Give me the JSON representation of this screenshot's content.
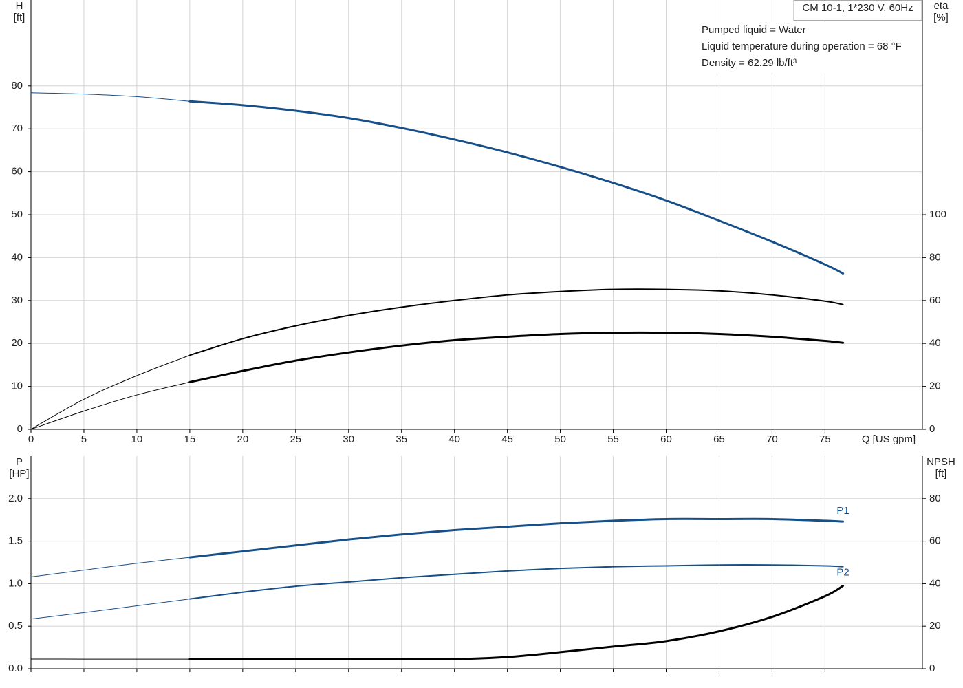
{
  "chart_data": [
    {
      "type": "line",
      "annotation_box": "CM 10-1, 1*230 V, 60Hz",
      "annotations": [
        "Pumped liquid = Water",
        "Liquid temperature during operation = 68 °F",
        "Density = 62.29 lb/ft³"
      ],
      "ylabel": "H",
      "yunit": "[ft]",
      "y2label": "eta",
      "y2unit": "[%]",
      "xlabel": "Q [US gpm]",
      "x": [
        0,
        5,
        10,
        15,
        20,
        25,
        30,
        35,
        40,
        45,
        50,
        55,
        60,
        65,
        70,
        75,
        76.7
      ],
      "xlim": [
        0,
        84.2
      ],
      "xticks": [
        0,
        5,
        10,
        15,
        20,
        25,
        30,
        35,
        40,
        45,
        50,
        55,
        60,
        65,
        70,
        75
      ],
      "ylim": [
        0,
        100
      ],
      "yticks": [
        0,
        10,
        20,
        30,
        40,
        50,
        60,
        70,
        80
      ],
      "y2lim": [
        0,
        200
      ],
      "y2ticks": [
        0,
        20,
        40,
        60,
        80,
        100
      ],
      "grid": true,
      "thick_from": 15,
      "series": [
        {
          "color": "#174f88",
          "linewidth": 3,
          "values": [
            78.4,
            78.1,
            77.5,
            76.4,
            75.5,
            74.2,
            72.5,
            70.2,
            67.5,
            64.5,
            61.1,
            57.4,
            53.3,
            48.6,
            43.7,
            38.4,
            36.3
          ]
        },
        {
          "color": "#000000",
          "axis": "y2",
          "linewidth": 2,
          "values": [
            0,
            14,
            25,
            34.5,
            42.2,
            48.2,
            53,
            56.9,
            60,
            62.6,
            64.2,
            65.2,
            65.2,
            64.5,
            62.6,
            59.7,
            58.1
          ]
        },
        {
          "color": "#000000",
          "axis": "y2",
          "linewidth": 3,
          "values": [
            0,
            8.5,
            16,
            22,
            27.2,
            32,
            35.8,
            39,
            41.5,
            43.1,
            44.4,
            45,
            45,
            44.4,
            43.1,
            41.2,
            40.3
          ]
        }
      ]
    },
    {
      "type": "line",
      "ylabel": "P",
      "yunit": "[HP]",
      "y2label": "NPSH",
      "y2unit": "[ft]",
      "x": [
        0,
        5,
        10,
        15,
        20,
        25,
        30,
        35,
        40,
        45,
        50,
        55,
        60,
        65,
        70,
        75,
        76.7
      ],
      "xlim": [
        0,
        84.2
      ],
      "xticks": [
        0,
        5,
        10,
        15,
        20,
        25,
        30,
        35,
        40,
        45,
        50,
        55,
        60,
        65,
        70,
        75
      ],
      "xtick_labels": false,
      "ylim": [
        0,
        2.5
      ],
      "yticks": [
        {
          "value": 0,
          "label": "0.0"
        },
        {
          "value": 0.5,
          "label": "0.5"
        },
        {
          "value": 1,
          "label": "1.0"
        },
        {
          "value": 1.5,
          "label": "1.5"
        },
        {
          "value": 2,
          "label": "2.0"
        }
      ],
      "y2lim": [
        0,
        100
      ],
      "y2ticks": [
        0,
        20,
        40,
        60,
        80
      ],
      "grid": true,
      "thick_from": 15,
      "series": [
        {
          "name": "P1",
          "color": "#174f88",
          "linewidth": 3,
          "values": [
            1.08,
            1.16,
            1.24,
            1.31,
            1.38,
            1.45,
            1.52,
            1.58,
            1.63,
            1.67,
            1.71,
            1.74,
            1.76,
            1.76,
            1.76,
            1.74,
            1.73
          ]
        },
        {
          "name": "P2",
          "color": "#174f88",
          "linewidth": 2,
          "values": [
            0.585,
            0.66,
            0.74,
            0.82,
            0.9,
            0.97,
            1.02,
            1.07,
            1.11,
            1.15,
            1.18,
            1.2,
            1.21,
            1.22,
            1.22,
            1.21,
            1.2
          ]
        },
        {
          "color": "#000000",
          "axis": "y2",
          "linewidth": 3,
          "values": [
            4.55,
            4.5,
            4.5,
            4.5,
            4.5,
            4.5,
            4.5,
            4.5,
            4.5,
            5.5,
            7.8,
            10.4,
            13,
            17.6,
            24.4,
            34.1,
            39
          ]
        }
      ]
    }
  ]
}
